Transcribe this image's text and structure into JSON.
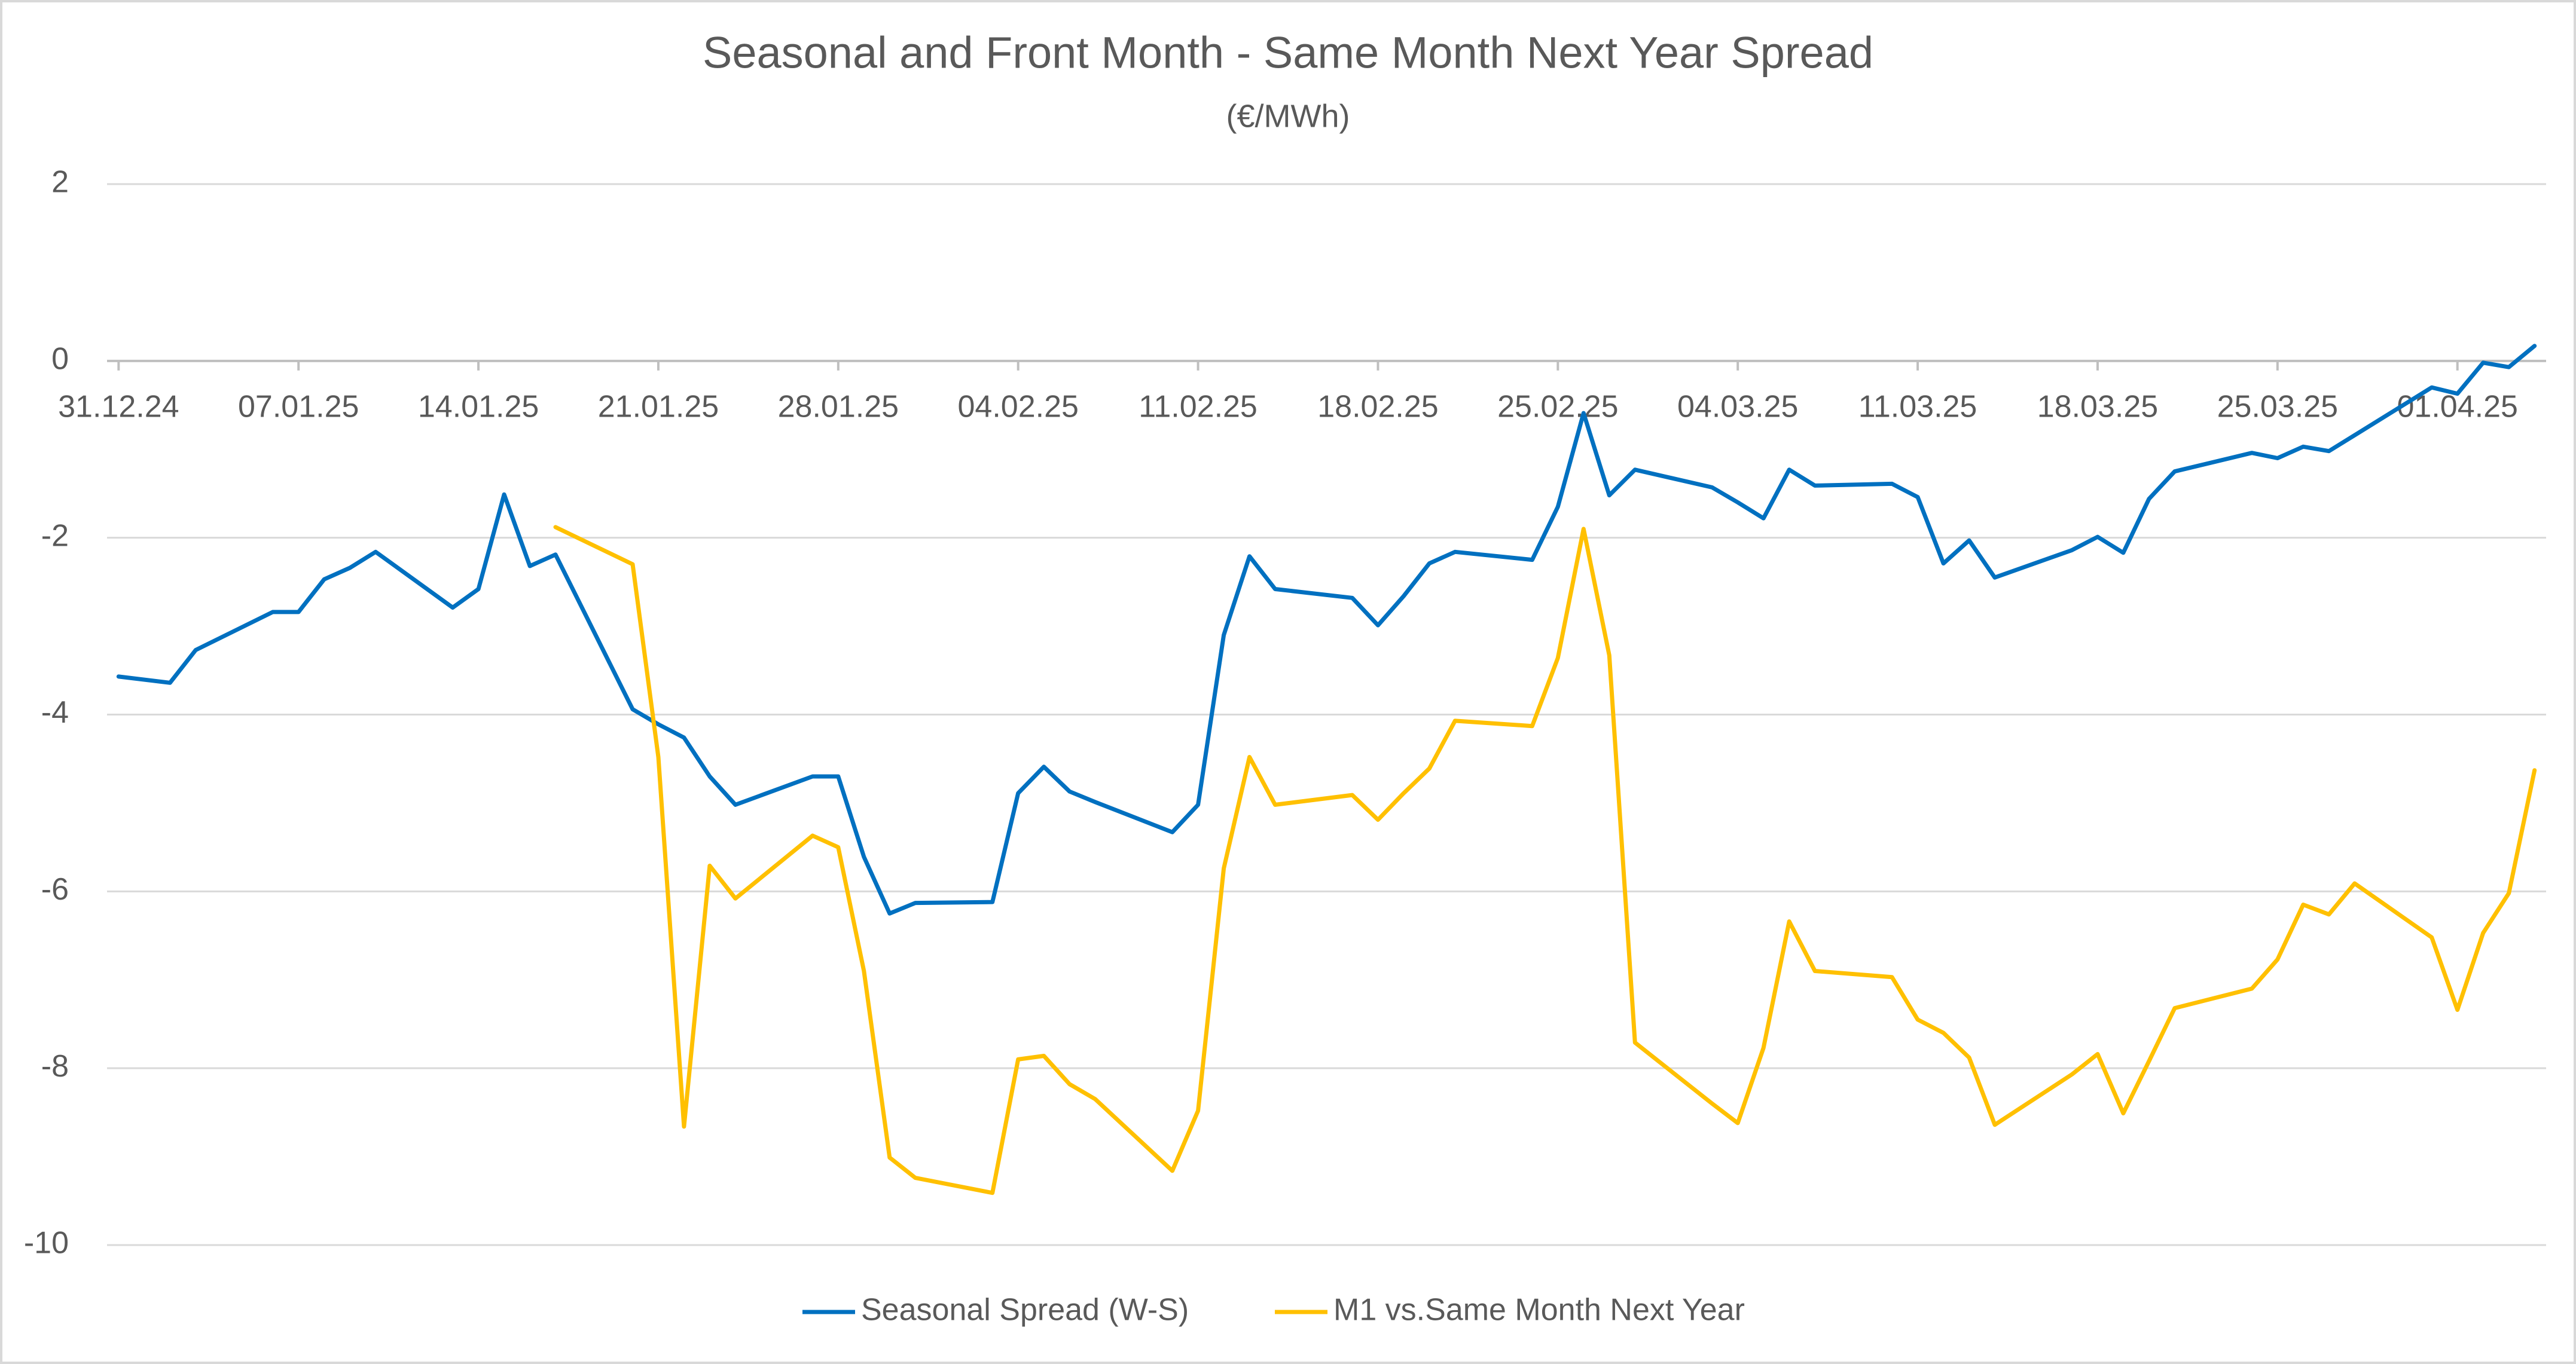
{
  "chart_data": {
    "type": "line",
    "title": "Seasonal and Front Month - Same Month Next Year Spread",
    "subtitle": "(€/MWh)",
    "x": [
      "31.12.24",
      "02.01.25",
      "03.01.25",
      "06.01.25",
      "07.01.25",
      "08.01.25",
      "09.01.25",
      "10.01.25",
      "13.01.25",
      "14.01.25",
      "15.01.25",
      "16.01.25",
      "17.01.25",
      "20.01.25",
      "21.01.25",
      "22.01.25",
      "23.01.25",
      "24.01.25",
      "27.01.25",
      "28.01.25",
      "29.01.25",
      "30.01.25",
      "31.01.25",
      "03.02.25",
      "04.02.25",
      "05.02.25",
      "06.02.25",
      "07.02.25",
      "10.02.25",
      "11.02.25",
      "12.02.25",
      "13.02.25",
      "14.02.25",
      "17.02.25",
      "18.02.25",
      "19.02.25",
      "20.02.25",
      "21.02.25",
      "24.02.25",
      "25.02.25",
      "26.02.25",
      "27.02.25",
      "28.02.25",
      "03.03.25",
      "04.03.25",
      "05.03.25",
      "06.03.25",
      "07.03.25",
      "10.03.25",
      "11.03.25",
      "12.03.25",
      "13.03.25",
      "14.03.25",
      "17.03.25",
      "18.03.25",
      "19.03.25",
      "20.03.25",
      "21.03.25",
      "24.03.25",
      "25.03.25",
      "26.03.25",
      "27.03.25",
      "28.03.25",
      "31.03.25",
      "01.04.25",
      "02.04.25",
      "03.04.25",
      "04.04.25"
    ],
    "xlim": [
      "31.12.24",
      "04.04.25"
    ],
    "xticks": [
      "31.12.24",
      "07.01.25",
      "14.01.25",
      "21.01.25",
      "28.01.25",
      "04.02.25",
      "11.02.25",
      "18.02.25",
      "25.02.25",
      "04.03.25",
      "11.03.25",
      "18.03.25",
      "25.03.25",
      "01.04.25"
    ],
    "ylim": [
      -10,
      2
    ],
    "yticks": [
      -10,
      -8,
      -6,
      -4,
      -2,
      0,
      2
    ],
    "grid": true,
    "legend": "bottom",
    "series": [
      {
        "name": "Seasonal Spread (W-S)",
        "color": "#0070c0",
        "values": [
          -3.57,
          -3.64,
          -3.27,
          -2.84,
          -2.84,
          -2.47,
          -2.34,
          -2.16,
          -2.79,
          -2.58,
          -1.51,
          -2.32,
          -2.19,
          -3.94,
          -4.11,
          -4.26,
          -4.7,
          -5.02,
          -4.7,
          -4.7,
          -5.61,
          -6.25,
          -6.13,
          -6.12,
          -4.89,
          -4.59,
          -4.87,
          -4.99,
          -5.33,
          -5.02,
          -3.1,
          -2.21,
          -2.58,
          -2.68,
          -2.99,
          -2.66,
          -2.29,
          -2.16,
          -2.25,
          -1.65,
          -0.59,
          -1.52,
          -1.23,
          -1.43,
          -1.6,
          -1.78,
          -1.23,
          -1.41,
          -1.39,
          -1.54,
          -2.29,
          -2.03,
          -2.45,
          -2.14,
          -1.99,
          -2.17,
          -1.56,
          -1.25,
          -1.04,
          -1.1,
          -0.97,
          -1.02,
          -0.84,
          -0.3,
          -0.37,
          -0.02,
          -0.07,
          0.17
        ]
      },
      {
        "name": "M1 vs.Same Month Next Year",
        "color": "#ffc000",
        "values": [
          null,
          null,
          null,
          null,
          null,
          null,
          null,
          null,
          null,
          null,
          null,
          null,
          -1.88,
          -2.3,
          -4.48,
          -8.66,
          -5.71,
          -6.08,
          -5.37,
          -5.5,
          -6.9,
          -9.01,
          -9.24,
          -9.41,
          -7.9,
          -7.86,
          -8.18,
          -8.35,
          -9.16,
          -8.48,
          -5.74,
          -4.48,
          -5.02,
          -4.91,
          -5.19,
          -4.89,
          -4.61,
          -4.07,
          -4.13,
          -3.36,
          -1.9,
          -3.33,
          -7.71,
          -8.4,
          -8.62,
          -7.77,
          -6.34,
          -6.9,
          -6.97,
          -7.45,
          -7.6,
          -7.88,
          -8.64,
          -8.07,
          -7.84,
          -8.51,
          -7.92,
          -7.32,
          -7.1,
          -6.77,
          -6.15,
          -6.26,
          -5.91,
          -6.52,
          -7.34,
          -6.47,
          -6.02,
          -4.63
        ]
      }
    ]
  }
}
